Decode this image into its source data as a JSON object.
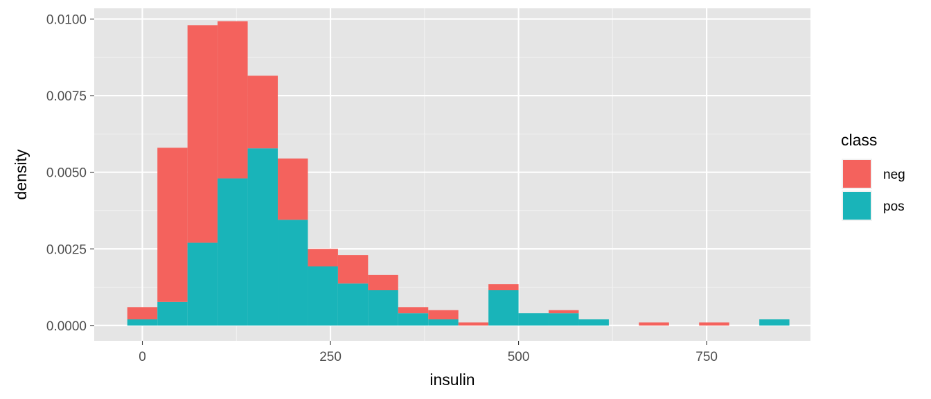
{
  "chart_data": {
    "type": "bar",
    "stacked": true,
    "xlabel": "insulin",
    "ylabel": "density",
    "xlim": [
      -64,
      888
    ],
    "ylim": [
      -0.0005,
      0.01035
    ],
    "x_ticks": [
      0,
      250,
      500,
      750
    ],
    "x_tick_labels": [
      "0",
      "250",
      "500",
      "750"
    ],
    "y_ticks": [
      0.0,
      0.0025,
      0.005,
      0.0075,
      0.01
    ],
    "y_tick_labels": [
      "0.0000",
      "0.0025",
      "0.0050",
      "0.0075",
      "0.0100"
    ],
    "grid": true,
    "legend_title": "class",
    "legend_position": "right",
    "bins": [
      [
        -20,
        20
      ],
      [
        20,
        60
      ],
      [
        60,
        100
      ],
      [
        100,
        140
      ],
      [
        140,
        180
      ],
      [
        180,
        220
      ],
      [
        220,
        260
      ],
      [
        260,
        300
      ],
      [
        300,
        340
      ],
      [
        340,
        380
      ],
      [
        380,
        420
      ],
      [
        420,
        460
      ],
      [
        460,
        500
      ],
      [
        500,
        540
      ],
      [
        540,
        580
      ],
      [
        580,
        620
      ],
      [
        620,
        660
      ],
      [
        660,
        700
      ],
      [
        700,
        740
      ],
      [
        740,
        780
      ],
      [
        780,
        820
      ],
      [
        820,
        860
      ]
    ],
    "series": [
      {
        "name": "pos",
        "color": "#19B4B9",
        "values": [
          0.0002,
          0.00077,
          0.0027,
          0.0048,
          0.00578,
          0.00345,
          0.00193,
          0.00137,
          0.00115,
          0.0004,
          0.0002,
          0.0,
          0.00115,
          0.0004,
          0.0004,
          0.0002,
          0.0,
          0.0,
          0.0,
          0.0,
          0.0,
          0.0002
        ]
      },
      {
        "name": "neg",
        "color": "#F4625D",
        "values": [
          0.0004,
          0.00503,
          0.0071,
          0.00513,
          0.00237,
          0.002,
          0.00057,
          0.00093,
          0.0005,
          0.0002,
          0.0003,
          0.0001,
          0.0002,
          0.0,
          0.0001,
          0.0,
          0.0,
          0.0001,
          0.0,
          0.0001,
          0.0,
          0.0
        ]
      }
    ]
  }
}
